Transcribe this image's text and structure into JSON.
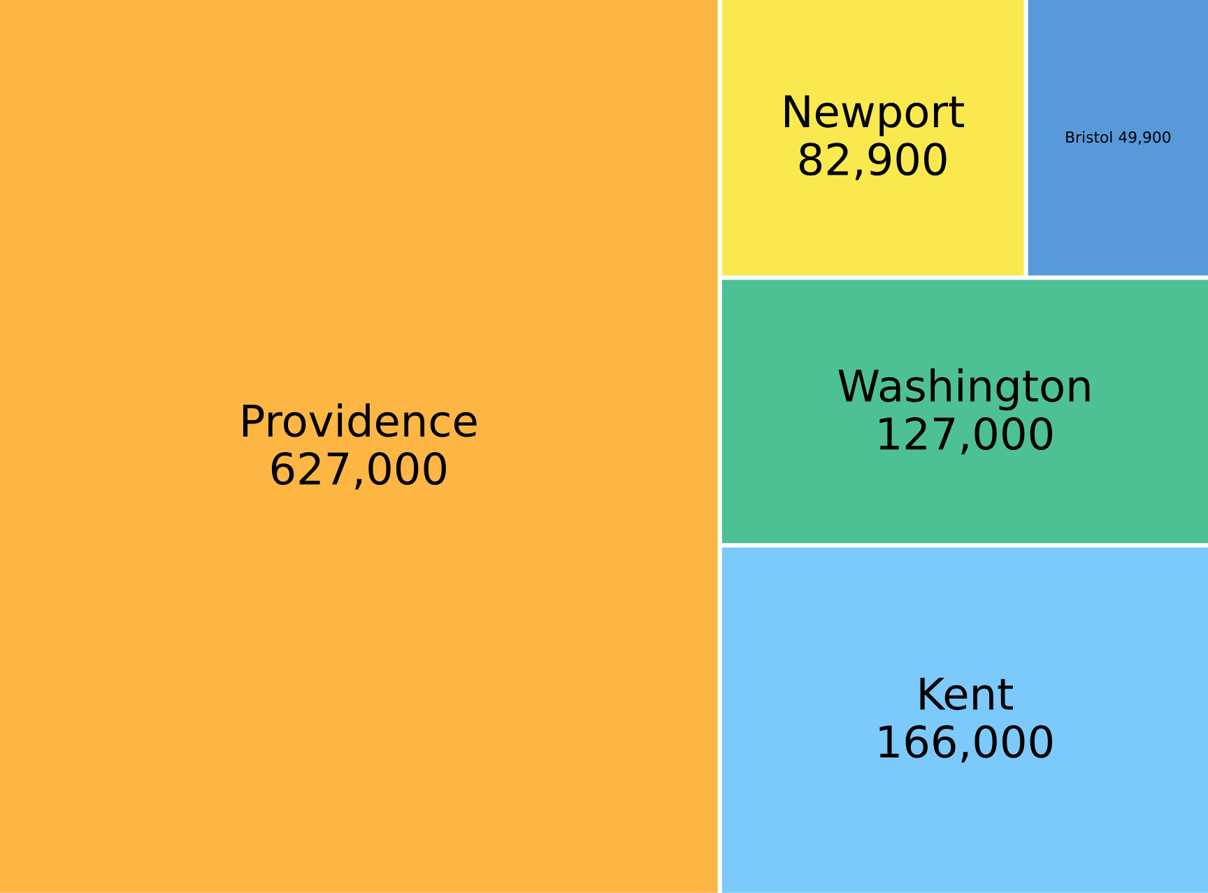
{
  "chart_data": {
    "type": "other",
    "categories": [
      "Providence",
      "Kent",
      "Washington",
      "Newport",
      "Bristol"
    ],
    "values": [
      627000,
      166000,
      127000,
      82900,
      49900
    ],
    "value_labels": [
      "627,000",
      "166,000",
      "127,000",
      "82,900",
      "49,900"
    ],
    "colors": [
      "#fdb644",
      "#7cc9fc",
      "#4dc194",
      "#f9e94f",
      "#5899da"
    ]
  }
}
